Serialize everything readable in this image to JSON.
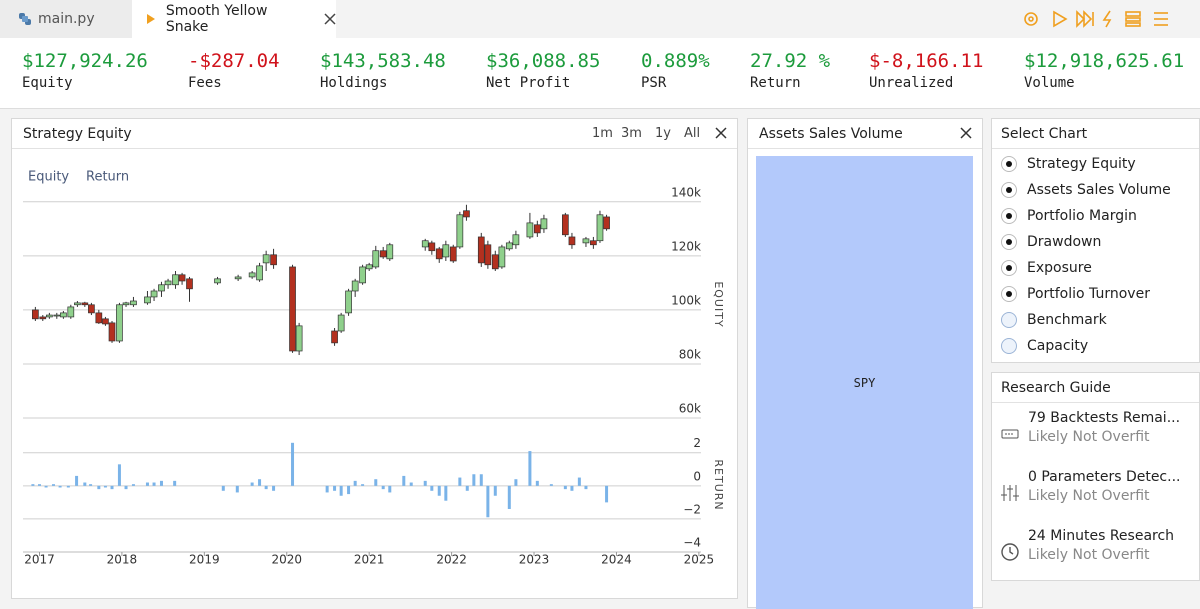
{
  "tabs": [
    "main.py",
    "Smooth Yellow Snake"
  ],
  "stats": [
    {
      "value": "$127,924.26",
      "label": "Equity",
      "color": "#1c9b3c"
    },
    {
      "value": "-$287.04",
      "label": "Fees",
      "color": "#d0121b"
    },
    {
      "value": "$143,583.48",
      "label": "Holdings",
      "color": "#1c9b3c"
    },
    {
      "value": "$36,088.85",
      "label": "Net Profit",
      "color": "#1c9b3c"
    },
    {
      "value": "0.889%",
      "label": "PSR",
      "color": "#1c9b3c"
    },
    {
      "value": "27.92 %",
      "label": "Return",
      "color": "#1c9b3c"
    },
    {
      "value": "$-8,166.11",
      "label": "Unrealized",
      "color": "#d0121b"
    },
    {
      "value": "$12,918,625.61",
      "label": "Volume",
      "color": "#1c9b3c"
    }
  ],
  "range_buttons": [
    "1m",
    "3m",
    "1y",
    "All"
  ],
  "assets_panel": {
    "title": "Assets Sales Volume",
    "items": [
      "SPY"
    ]
  },
  "select_chart": {
    "title": "Select Chart",
    "options": [
      {
        "label": "Strategy Equity",
        "checked": true
      },
      {
        "label": "Assets Sales Volume",
        "checked": true
      },
      {
        "label": "Portfolio Margin",
        "checked": true
      },
      {
        "label": "Drawdown",
        "checked": true
      },
      {
        "label": "Exposure",
        "checked": true
      },
      {
        "label": "Portfolio Turnover",
        "checked": true
      },
      {
        "label": "Benchmark",
        "checked": false
      },
      {
        "label": "Capacity",
        "checked": false
      }
    ]
  },
  "research_guide": {
    "title": "Research Guide",
    "items": [
      {
        "title": "79 Backtests Remai...",
        "subtitle": "Likely Not Overfit"
      },
      {
        "title": "0 Parameters Detec...",
        "subtitle": "Likely Not Overfit"
      },
      {
        "title": "24 Minutes Research",
        "subtitle": "Likely Not Overfit"
      }
    ]
  },
  "chart_data": [
    {
      "type": "candlestick",
      "title": "Strategy Equity",
      "name": "Equity",
      "ylabel": "EQUITY",
      "up_color": "#8fd08c",
      "down_color": "#b3301f",
      "xlim": [
        2016.8,
        2025.05
      ],
      "ylim": [
        60000,
        144000
      ],
      "yticks": [
        {
          "value": 60000,
          "label": "60k"
        },
        {
          "value": 80000,
          "label": "80k"
        },
        {
          "value": 100000,
          "label": "100k"
        },
        {
          "value": 120000,
          "label": "120k"
        },
        {
          "value": 140000,
          "label": "140k"
        }
      ],
      "x": [
        2016.95,
        2017.04,
        2017.12,
        2017.21,
        2017.29,
        2017.38,
        2017.46,
        2017.55,
        2017.63,
        2017.72,
        2017.8,
        2017.88,
        2017.97,
        2018.05,
        2018.14,
        2018.31,
        2018.39,
        2018.48,
        2018.56,
        2018.65,
        2018.73,
        2018.82,
        2019.16,
        2019.41,
        2019.58,
        2019.67,
        2019.75,
        2019.84,
        2020.07,
        2020.15,
        2020.58,
        2020.66,
        2020.75,
        2020.83,
        2020.92,
        2021.0,
        2021.08,
        2021.17,
        2021.25,
        2021.68,
        2021.76,
        2021.85,
        2021.93,
        2022.02,
        2022.1,
        2022.18,
        2022.36,
        2022.44,
        2022.53,
        2022.61,
        2022.7,
        2022.78,
        2022.95,
        2023.04,
        2023.12,
        2023.38,
        2023.46,
        2023.63,
        2023.72,
        2023.8,
        2023.88
      ],
      "open": [
        100000,
        97400,
        97400,
        97800,
        97400,
        97400,
        101900,
        102600,
        101900,
        98900,
        96700,
        95200,
        88500,
        101900,
        101900,
        102600,
        104800,
        107000,
        109300,
        109300,
        113000,
        111500,
        110000,
        111500,
        112200,
        111100,
        117400,
        120400,
        115900,
        84800,
        92200,
        92200,
        98900,
        107000,
        110000,
        115200,
        115900,
        121900,
        118900,
        123300,
        124800,
        122600,
        119600,
        123300,
        123300,
        136700,
        127000,
        124100,
        120400,
        115900,
        122600,
        124100,
        127000,
        131500,
        130000,
        135200,
        127000,
        124800,
        125600,
        125600,
        134400
      ],
      "close": [
        96700,
        96700,
        98100,
        98100,
        98900,
        101100,
        102600,
        101900,
        98900,
        95200,
        94800,
        88500,
        101900,
        102600,
        103300,
        104800,
        107000,
        109300,
        110700,
        113000,
        110700,
        107800,
        111500,
        112200,
        113700,
        116300,
        120400,
        116700,
        84800,
        94100,
        87800,
        98100,
        107000,
        110700,
        115900,
        116700,
        121900,
        119600,
        124100,
        125600,
        121900,
        118900,
        124100,
        118100,
        135200,
        134400,
        117400,
        116700,
        115200,
        123300,
        124800,
        127800,
        132200,
        128500,
        133700,
        127800,
        124100,
        126300,
        124100,
        135200,
        130000
      ],
      "high": [
        101100,
        98100,
        98900,
        98900,
        99600,
        101900,
        103300,
        103000,
        102600,
        100000,
        97400,
        95900,
        102600,
        103000,
        104800,
        107000,
        107800,
        110400,
        111500,
        114400,
        113700,
        112200,
        112200,
        113000,
        114400,
        117400,
        121900,
        122600,
        116700,
        95200,
        93300,
        98900,
        107800,
        111500,
        116700,
        117400,
        123700,
        123300,
        124800,
        126300,
        125600,
        123300,
        125600,
        124100,
        136300,
        138900,
        128500,
        125600,
        121900,
        124100,
        125600,
        129300,
        135900,
        133000,
        135200,
        135900,
        128500,
        127000,
        127000,
        136700,
        135200
      ],
      "low": [
        95900,
        95900,
        96700,
        96700,
        96700,
        96700,
        101100,
        101100,
        98100,
        94800,
        94100,
        87800,
        87800,
        101100,
        101100,
        101900,
        103300,
        104800,
        107800,
        107800,
        109300,
        103000,
        109300,
        110700,
        111500,
        110400,
        114400,
        115200,
        84100,
        83300,
        86700,
        91500,
        97800,
        104800,
        109300,
        114400,
        115200,
        118900,
        118100,
        121900,
        120400,
        117400,
        118100,
        117400,
        122600,
        133000,
        115900,
        115200,
        114400,
        115200,
        121900,
        122600,
        126300,
        127000,
        128500,
        127000,
        122600,
        123300,
        122600,
        124800,
        129300
      ]
    },
    {
      "type": "bar",
      "name": "Return",
      "ylabel": "RETURN",
      "color": "#7ab3e8",
      "xlim": [
        2016.8,
        2025.05
      ],
      "ylim": [
        -4,
        4.1
      ],
      "yticks": [
        {
          "value": -4,
          "label": "−4"
        },
        {
          "value": -2,
          "label": "−2"
        },
        0,
        2
      ],
      "xticks": [
        2017,
        2018,
        2019,
        2020,
        2021,
        2022,
        2023,
        2024,
        2025
      ],
      "x": [
        2016.92,
        2017.0,
        2017.08,
        2017.17,
        2017.25,
        2017.35,
        2017.45,
        2017.55,
        2017.62,
        2017.72,
        2017.8,
        2017.88,
        2017.97,
        2018.05,
        2018.14,
        2018.31,
        2018.39,
        2018.48,
        2018.64,
        2019.23,
        2019.4,
        2019.58,
        2019.67,
        2019.75,
        2019.84,
        2020.07,
        2020.49,
        2020.58,
        2020.66,
        2020.75,
        2020.83,
        2020.92,
        2021.08,
        2021.17,
        2021.25,
        2021.42,
        2021.51,
        2021.68,
        2021.76,
        2021.85,
        2021.93,
        2022.1,
        2022.19,
        2022.27,
        2022.36,
        2022.44,
        2022.53,
        2022.7,
        2022.78,
        2022.95,
        2023.04,
        2023.21,
        2023.38,
        2023.46,
        2023.55,
        2023.63,
        2023.88
      ],
      "values": [
        0.1,
        0.1,
        -0.1,
        0.1,
        -0.1,
        -0.1,
        0.6,
        0.2,
        0.1,
        -0.2,
        -0.1,
        -0.2,
        1.3,
        -0.2,
        0.1,
        0.2,
        0.2,
        0.3,
        0.3,
        -0.3,
        -0.4,
        0.2,
        0.4,
        -0.2,
        -0.3,
        2.6,
        -0.4,
        -0.3,
        -0.6,
        -0.5,
        0.3,
        0.1,
        0.4,
        -0.2,
        -0.4,
        0.6,
        0.2,
        0.3,
        -0.3,
        -0.6,
        -0.9,
        0.5,
        -0.3,
        0.7,
        0.7,
        -1.9,
        -0.6,
        -1.4,
        0.4,
        2.1,
        0.3,
        0.1,
        -0.2,
        -0.3,
        0.5,
        -0.2,
        -1.0
      ]
    }
  ]
}
